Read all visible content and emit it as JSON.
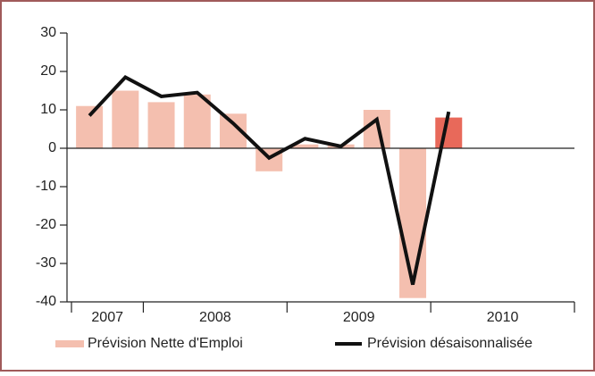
{
  "chart_data": {
    "type": "bar_line",
    "categories": [
      "2007",
      null,
      "2008",
      null,
      null,
      null,
      "2009",
      null,
      null,
      null,
      "2010",
      null,
      null,
      null
    ],
    "series": [
      {
        "name": "Prévision Nette d'Emploi",
        "type": "bar",
        "color": "#f4bfaf",
        "colors": [
          "#f4bfaf",
          "#f4bfaf",
          "#f4bfaf",
          "#f4bfaf",
          "#f4bfaf",
          "#f4bfaf",
          "#f4bfaf",
          "#f4bfaf",
          "#f4bfaf",
          "#f4bfaf",
          "#e8695a",
          null,
          null,
          null
        ],
        "values": [
          11,
          15,
          12,
          14,
          9,
          -6,
          1,
          1,
          10,
          -39,
          8,
          null,
          null,
          null
        ]
      },
      {
        "name": "Prévision désaisonnalisée",
        "type": "line",
        "color": "#111111",
        "values": [
          8.5,
          18.5,
          13.5,
          14.5,
          6.5,
          -2.5,
          2.5,
          0.5,
          7.5,
          -35.5,
          9.5,
          null,
          null,
          null
        ]
      }
    ],
    "ylim": [
      -40,
      30
    ],
    "yticks": [
      -40,
      -30,
      -20,
      -10,
      0,
      10,
      20,
      30
    ]
  }
}
